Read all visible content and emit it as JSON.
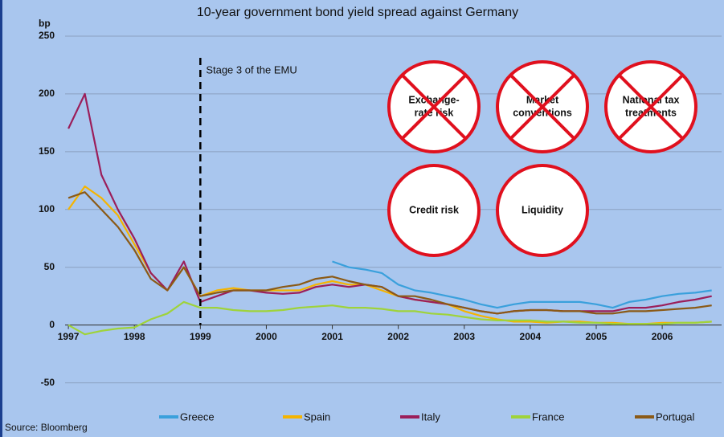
{
  "chart_data": {
    "type": "line",
    "title": "10-year government bond yield spread against Germany",
    "ylabel": "bp",
    "source": "Source: Bloomberg",
    "x": [
      1997.0,
      1997.25,
      1997.5,
      1997.75,
      1998.0,
      1998.25,
      1998.5,
      1998.75,
      1999.0,
      1999.25,
      1999.5,
      1999.75,
      2000.0,
      2000.25,
      2000.5,
      2000.75,
      2001.0,
      2001.25,
      2001.5,
      2001.75,
      2002.0,
      2002.25,
      2002.5,
      2002.75,
      2003.0,
      2003.25,
      2003.5,
      2003.75,
      2004.0,
      2004.25,
      2004.5,
      2004.75,
      2005.0,
      2005.25,
      2005.5,
      2005.75,
      2006.0,
      2006.25,
      2006.5,
      2006.75
    ],
    "series": [
      {
        "name": "Greece",
        "color": "#3aa0dc",
        "values": [
          null,
          null,
          null,
          null,
          null,
          null,
          null,
          null,
          null,
          null,
          null,
          null,
          null,
          null,
          null,
          null,
          55,
          50,
          48,
          45,
          35,
          30,
          28,
          25,
          22,
          18,
          15,
          18,
          20,
          20,
          20,
          20,
          18,
          15,
          20,
          22,
          25,
          27,
          28,
          30
        ]
      },
      {
        "name": "Spain",
        "color": "#f5b400",
        "values": [
          100,
          120,
          110,
          95,
          70,
          45,
          30,
          50,
          25,
          30,
          32,
          30,
          30,
          30,
          30,
          35,
          38,
          35,
          35,
          30,
          25,
          22,
          20,
          18,
          12,
          8,
          5,
          3,
          3,
          2,
          3,
          3,
          2,
          2,
          1,
          1,
          2,
          2,
          2,
          3
        ]
      },
      {
        "name": "Italy",
        "color": "#9b1e5a",
        "values": [
          170,
          200,
          130,
          100,
          75,
          45,
          30,
          55,
          20,
          25,
          30,
          30,
          28,
          27,
          28,
          33,
          35,
          33,
          35,
          33,
          25,
          22,
          20,
          18,
          15,
          12,
          10,
          12,
          13,
          13,
          12,
          12,
          12,
          12,
          15,
          15,
          17,
          20,
          22,
          25
        ]
      },
      {
        "name": "France",
        "color": "#9fd33a",
        "values": [
          0,
          -8,
          -5,
          -3,
          -2,
          5,
          10,
          20,
          15,
          15,
          13,
          12,
          12,
          13,
          15,
          16,
          17,
          15,
          15,
          14,
          12,
          12,
          10,
          9,
          7,
          5,
          4,
          4,
          4,
          3,
          3,
          2,
          2,
          1,
          1,
          1,
          1,
          2,
          2,
          3
        ]
      },
      {
        "name": "Portugal",
        "color": "#8b5a16",
        "values": [
          110,
          115,
          100,
          85,
          65,
          40,
          30,
          50,
          25,
          28,
          30,
          30,
          30,
          33,
          35,
          40,
          42,
          38,
          35,
          33,
          25,
          25,
          22,
          18,
          15,
          12,
          10,
          12,
          13,
          13,
          12,
          12,
          10,
          10,
          12,
          12,
          13,
          14,
          15,
          17
        ]
      }
    ],
    "xlim": [
      1996.95,
      2006.9
    ],
    "xticks": [
      1997,
      1998,
      1999,
      2000,
      2001,
      2002,
      2003,
      2004,
      2005,
      2006
    ],
    "ylim": [
      -60,
      250
    ],
    "yticks": [
      -50,
      0,
      50,
      100,
      150,
      200,
      250
    ],
    "grid": true,
    "legend": "bottom",
    "vline": {
      "x": 1999,
      "label": "Stage 3 of the EMU"
    },
    "annotations": [
      {
        "lines": [
          "Exchange-",
          "rate risk"
        ],
        "crossed": true
      },
      {
        "lines": [
          "Market",
          "conventions"
        ],
        "crossed": true
      },
      {
        "lines": [
          "National tax",
          "treatments"
        ],
        "crossed": true
      },
      {
        "lines": [
          "Credit risk"
        ],
        "crossed": false
      },
      {
        "lines": [
          "Liquidity"
        ],
        "crossed": false
      }
    ]
  }
}
